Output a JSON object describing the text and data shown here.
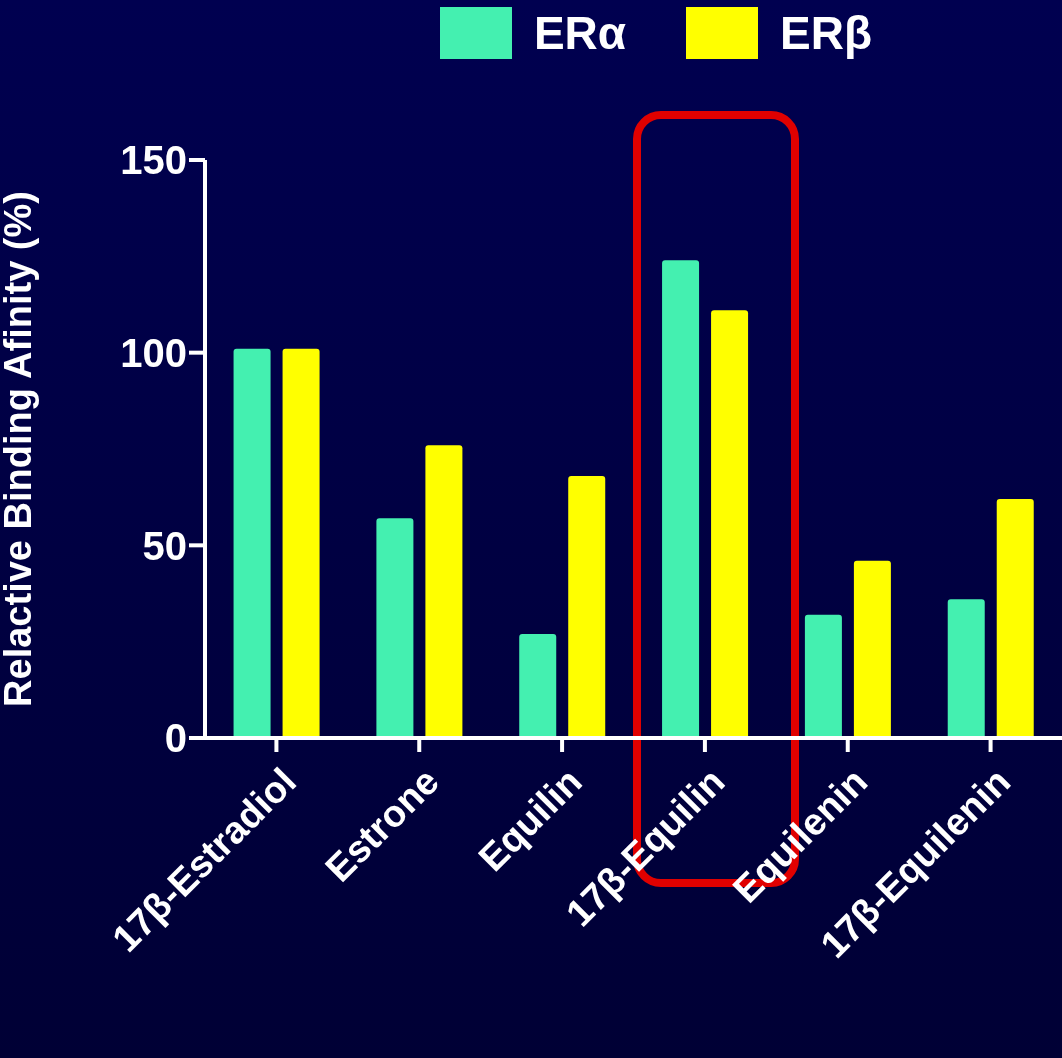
{
  "chart_data": {
    "type": "bar",
    "ylabel": "Relactive Binding Afinity (%)",
    "categories": [
      "17β-Estradiol",
      "Estrone",
      "Equilin",
      "17β-Equilin",
      "Equilenin",
      "17β-Equilenin"
    ],
    "series": [
      {
        "name": "ERα",
        "color": "#44f0b0",
        "values": [
          101,
          57,
          27,
          124,
          32,
          36
        ]
      },
      {
        "name": "ERβ",
        "color": "#ffff00",
        "values": [
          101,
          76,
          68,
          111,
          46,
          62
        ]
      }
    ],
    "ylim": [
      0,
      150
    ],
    "yticks": [
      0,
      50,
      100,
      150
    ],
    "grid": false,
    "legend": "top"
  }
}
